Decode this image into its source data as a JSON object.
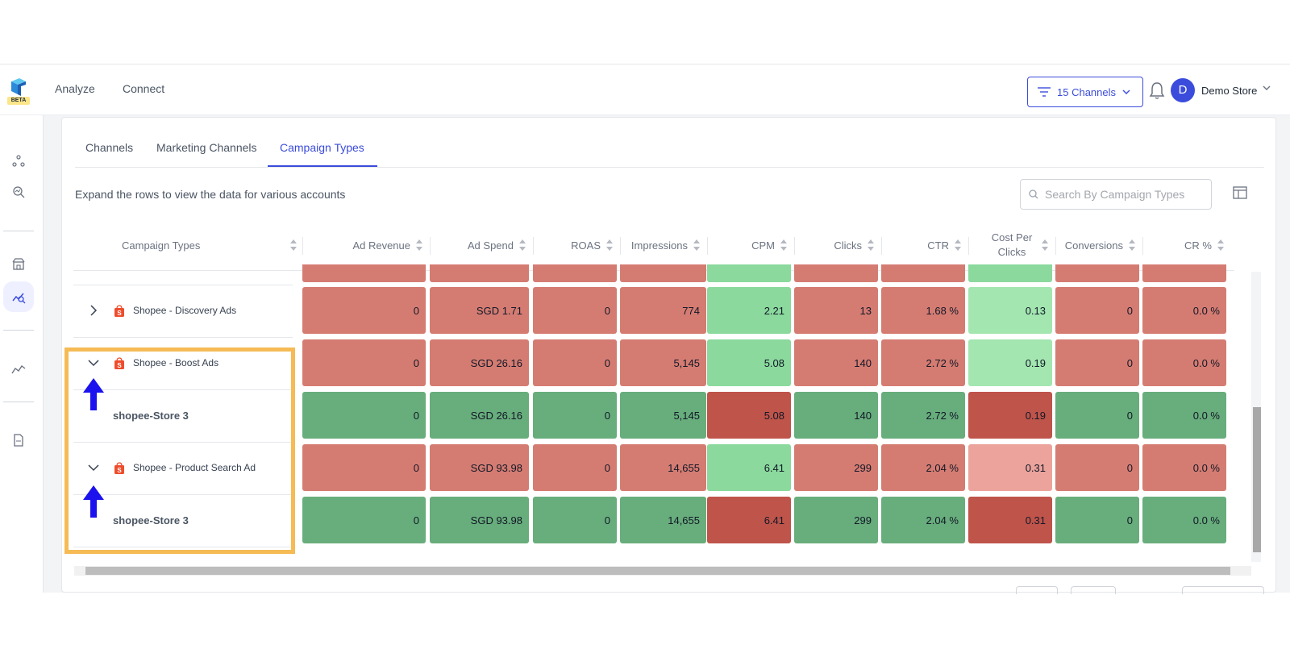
{
  "nav": {
    "links": [
      "Analyze",
      "Connect"
    ],
    "beta_label": "BETA",
    "channels_label": "15 Channels",
    "avatar_initial": "D",
    "store_name": "Demo Store"
  },
  "tabs": [
    {
      "label": "Channels",
      "active": false
    },
    {
      "label": "Marketing Channels",
      "active": false
    },
    {
      "label": "Campaign Types",
      "active": true
    }
  ],
  "hint": "Expand the rows to view the data for various accounts",
  "search": {
    "placeholder": "Search By Campaign Types"
  },
  "columns": [
    "Campaign Types",
    "Ad Revenue",
    "Ad Spend",
    "ROAS",
    "Impressions",
    "CPM",
    "Clicks",
    "CTR",
    "Cost Per Clicks",
    "Conversions",
    "CR %"
  ],
  "rows": [
    {
      "name": "Shopee - Discovery Ads",
      "type": "parent",
      "expanded": false,
      "values": [
        "0",
        "SGD 1.71",
        "0",
        "774",
        "2.21",
        "13",
        "1.68 %",
        "0.13",
        "0",
        "0.0 %"
      ]
    },
    {
      "name": "Shopee - Boost Ads",
      "type": "parent",
      "expanded": true,
      "values": [
        "0",
        "SGD 26.16",
        "0",
        "5,145",
        "5.08",
        "140",
        "2.72 %",
        "0.19",
        "0",
        "0.0 %"
      ]
    },
    {
      "name": "shopee-Store 3",
      "type": "child",
      "values": [
        "0",
        "SGD 26.16",
        "0",
        "5,145",
        "5.08",
        "140",
        "2.72 %",
        "0.19",
        "0",
        "0.0 %"
      ]
    },
    {
      "name": "Shopee - Product Search Ad",
      "type": "parent",
      "expanded": true,
      "values": [
        "0",
        "SGD 93.98",
        "0",
        "14,655",
        "6.41",
        "299",
        "2.04 %",
        "0.31",
        "0",
        "0.0 %"
      ]
    },
    {
      "name": "shopee-Store 3",
      "type": "child",
      "values": [
        "0",
        "SGD 93.98",
        "0",
        "14,655",
        "6.41",
        "299",
        "2.04 %",
        "0.31",
        "0",
        "0.0 %"
      ]
    }
  ],
  "colors": {
    "accent": "#3b4cdc",
    "red": "#d57c72",
    "green_light": "#8bd99d",
    "green_pale": "#a3e6b0",
    "pink": "#eba39c",
    "green_dark": "#68ad7c",
    "red_dark": "#bf544a",
    "highlight": "#f6bb55",
    "arrow": "#1b12ee"
  },
  "cell_colors": [
    [
      "red",
      "red",
      "red",
      "red",
      "green_light",
      "red",
      "red",
      "green_pale",
      "red",
      "red"
    ],
    [
      "red",
      "red",
      "red",
      "red",
      "green_light",
      "red",
      "red",
      "green_pale",
      "red",
      "red"
    ],
    [
      "green_dark",
      "green_dark",
      "green_dark",
      "green_dark",
      "red_dark",
      "green_dark",
      "green_dark",
      "red_dark",
      "green_dark",
      "green_dark"
    ],
    [
      "red",
      "red",
      "red",
      "red",
      "green_light",
      "red",
      "red",
      "pink",
      "red",
      "red"
    ],
    [
      "green_dark",
      "green_dark",
      "green_dark",
      "green_dark",
      "red_dark",
      "green_dark",
      "green_dark",
      "red_dark",
      "green_dark",
      "green_dark"
    ]
  ],
  "partial_row_colors": [
    "red",
    "red",
    "red",
    "red",
    "green_light",
    "red",
    "red",
    "green_light",
    "red",
    "red"
  ]
}
